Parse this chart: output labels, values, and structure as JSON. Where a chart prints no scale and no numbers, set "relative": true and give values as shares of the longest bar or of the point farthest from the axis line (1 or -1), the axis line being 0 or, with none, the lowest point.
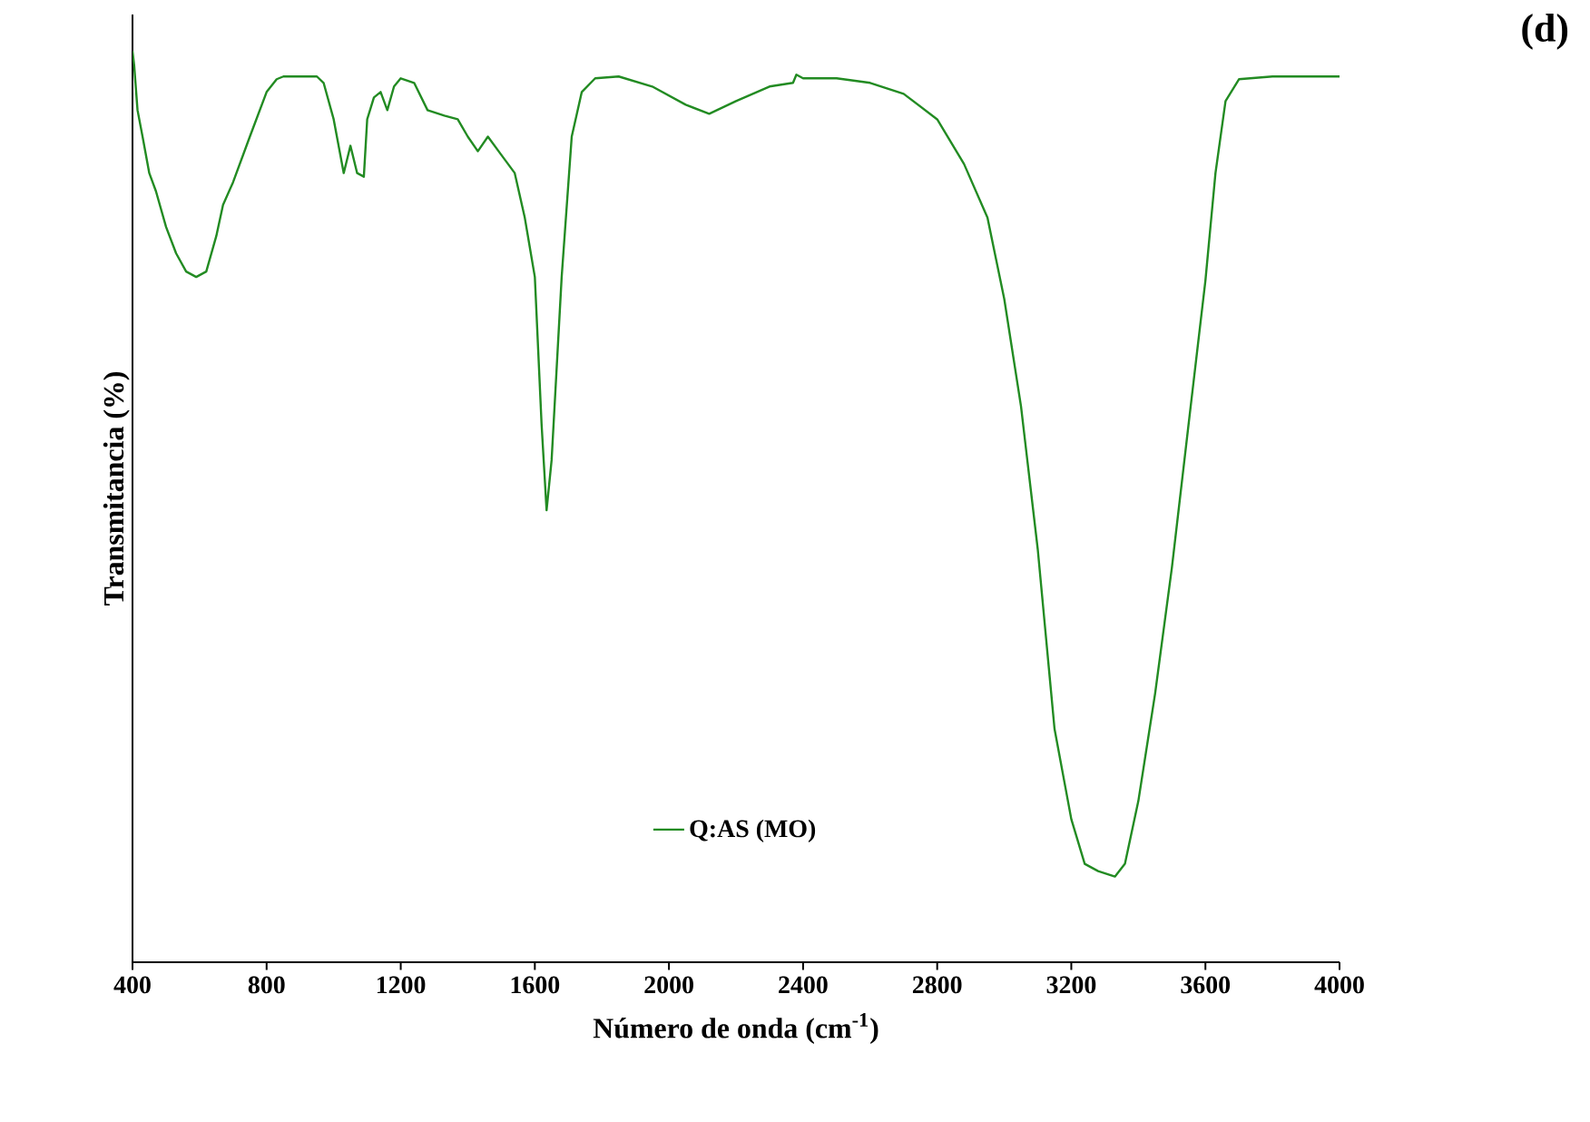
{
  "chart_data": {
    "type": "line",
    "relative": true,
    "xlabel": "Número de onda (cm$^{-1}$)",
    "ylabel": "Transmitancia (%)",
    "annotations": [
      "(d)"
    ],
    "xlim": [
      400,
      4000
    ],
    "xticks": [
      400,
      800,
      1200,
      1600,
      2000,
      2400,
      2800,
      3200,
      3600,
      4000
    ],
    "legend": "bottom",
    "grid": false,
    "series": [
      {
        "name": "Q:AS (MO)",
        "color": "#228b22",
        "x": [
          400,
          405,
          415,
          430,
          450,
          470,
          500,
          530,
          560,
          590,
          620,
          650,
          670,
          700,
          750,
          800,
          830,
          850,
          900,
          950,
          970,
          1000,
          1030,
          1050,
          1070,
          1090,
          1100,
          1120,
          1140,
          1160,
          1180,
          1200,
          1240,
          1280,
          1330,
          1370,
          1400,
          1430,
          1460,
          1500,
          1540,
          1570,
          1600,
          1620,
          1635,
          1650,
          1680,
          1710,
          1740,
          1780,
          1850,
          1950,
          2050,
          2120,
          2200,
          2300,
          2370,
          2380,
          2400,
          2500,
          2600,
          2700,
          2800,
          2880,
          2950,
          3000,
          3050,
          3100,
          3150,
          3200,
          3240,
          3280,
          3330,
          3360,
          3400,
          3450,
          3500,
          3550,
          3600,
          3630,
          3660,
          3700,
          3800,
          4000
        ],
        "values": [
          1.0,
          0.984,
          0.935,
          0.906,
          0.866,
          0.846,
          0.807,
          0.778,
          0.758,
          0.752,
          0.758,
          0.797,
          0.831,
          0.856,
          0.906,
          0.955,
          0.969,
          0.972,
          0.972,
          0.972,
          0.965,
          0.925,
          0.866,
          0.896,
          0.866,
          0.862,
          0.925,
          0.949,
          0.955,
          0.935,
          0.961,
          0.97,
          0.965,
          0.935,
          0.929,
          0.925,
          0.906,
          0.89,
          0.906,
          0.886,
          0.866,
          0.817,
          0.752,
          0.591,
          0.496,
          0.551,
          0.752,
          0.906,
          0.955,
          0.97,
          0.972,
          0.961,
          0.941,
          0.931,
          0.945,
          0.961,
          0.965,
          0.974,
          0.97,
          0.97,
          0.965,
          0.953,
          0.925,
          0.876,
          0.817,
          0.728,
          0.61,
          0.453,
          0.256,
          0.157,
          0.108,
          0.1,
          0.094,
          0.108,
          0.177,
          0.295,
          0.433,
          0.591,
          0.748,
          0.866,
          0.945,
          0.969,
          0.972,
          0.972
        ]
      }
    ]
  }
}
